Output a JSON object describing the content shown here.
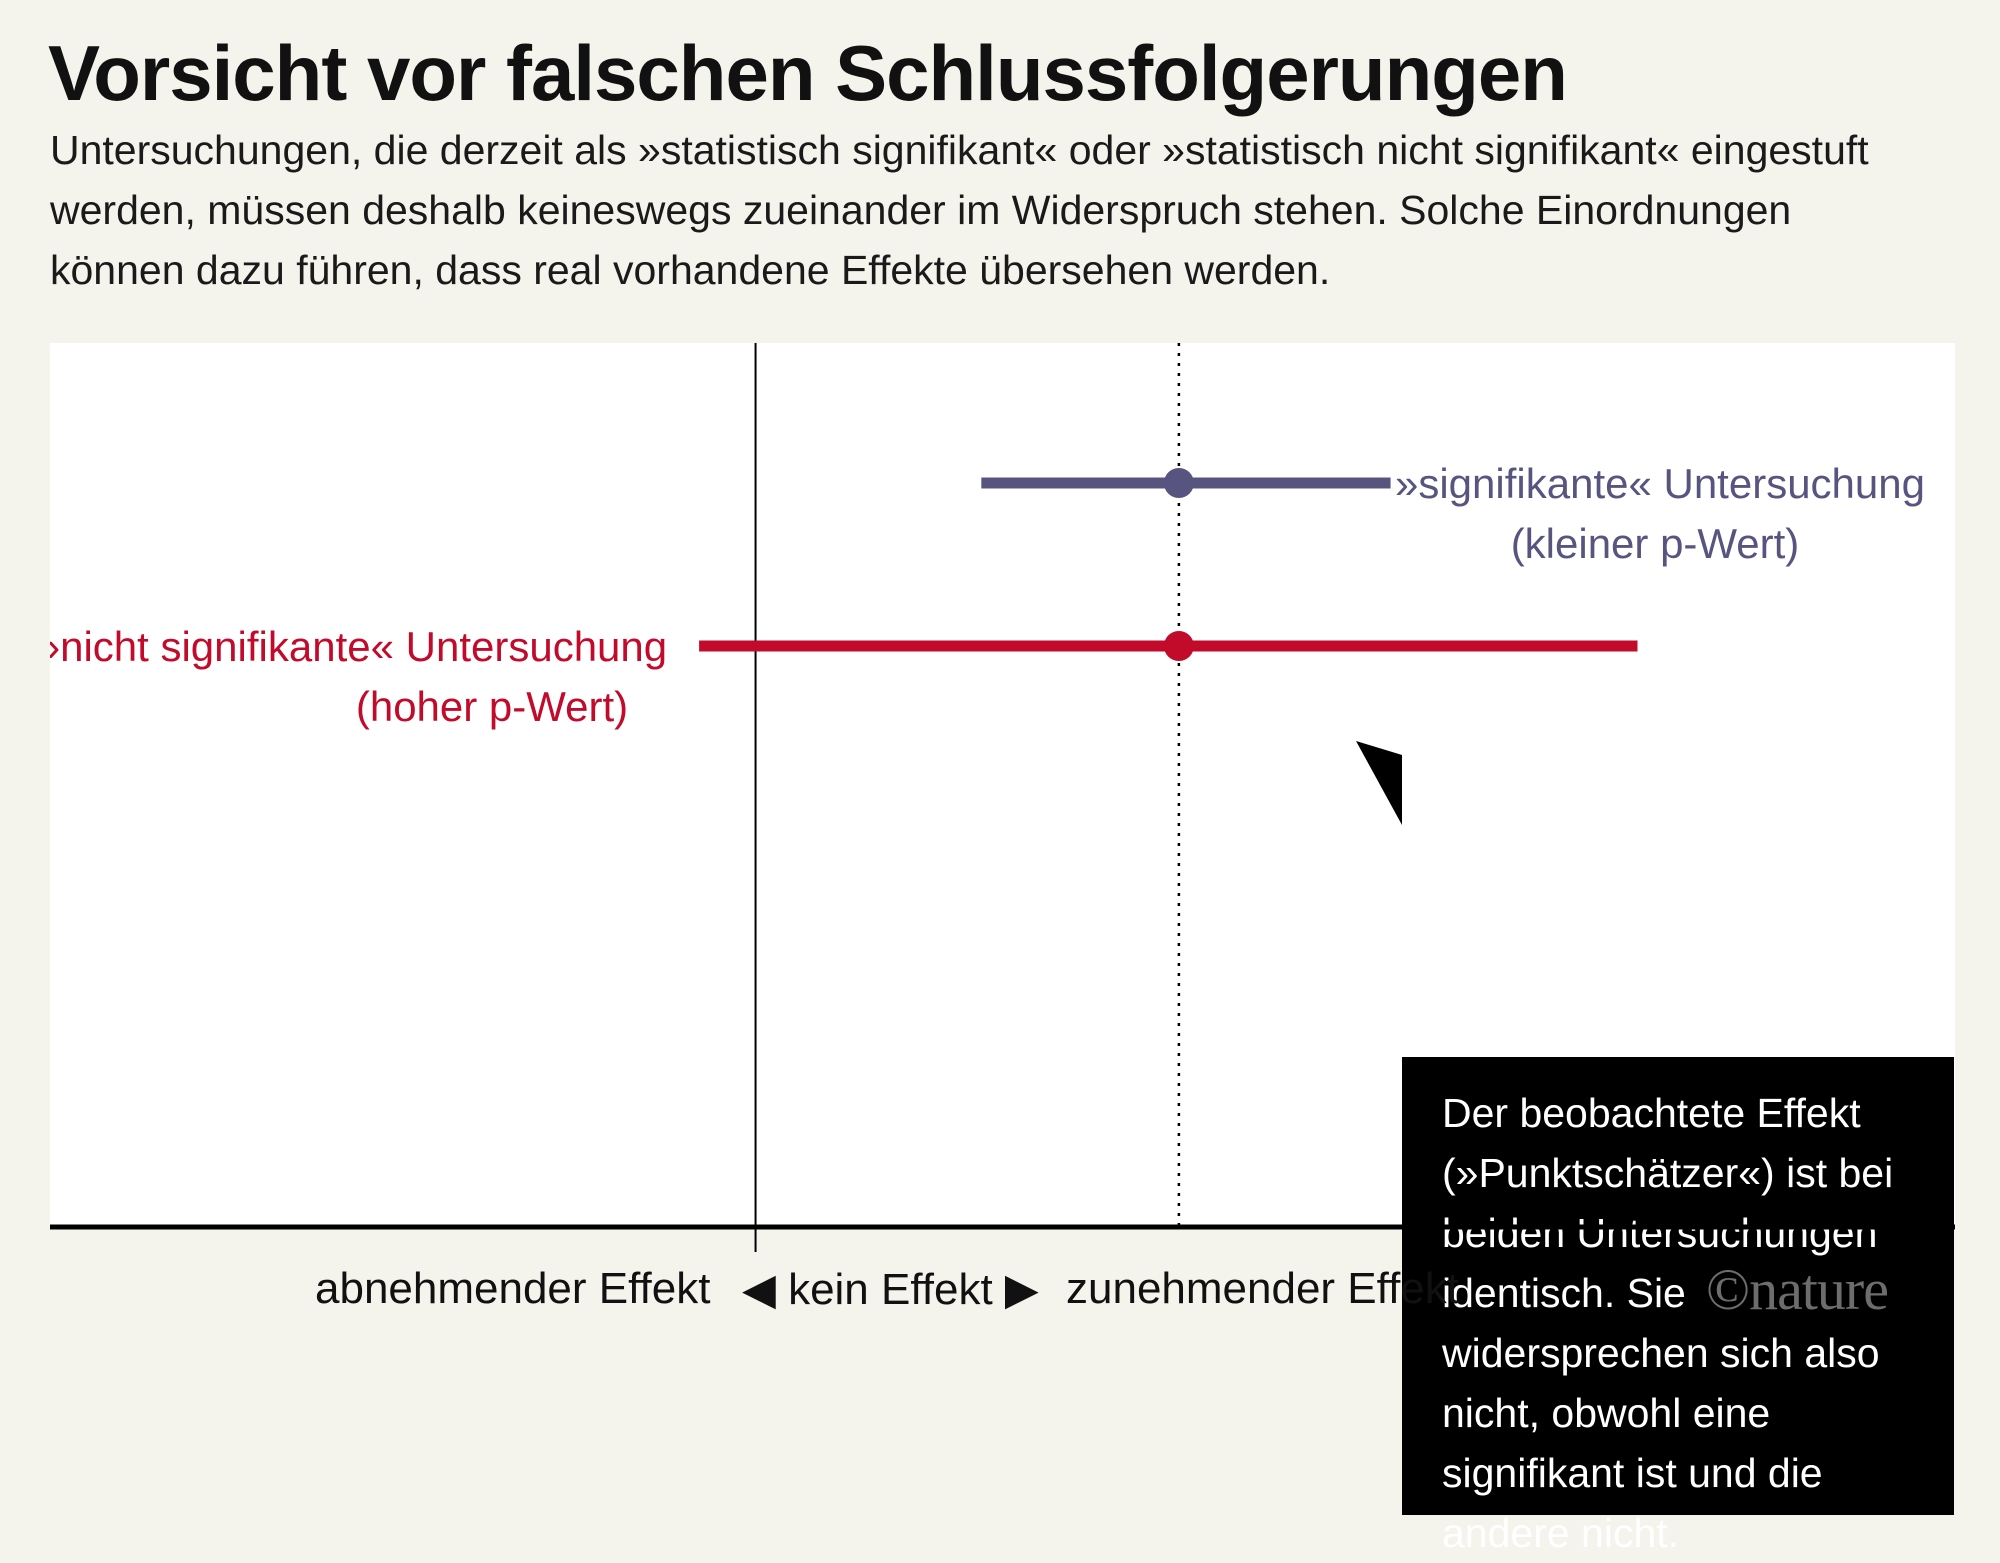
{
  "header": {
    "title": "Vorsicht vor falschen Schlussfolgerungen",
    "subtitle": "Untersuchungen, die derzeit als »statistisch signifikant« oder »statistisch nicht signifikant« eingestuft werden, müssen deshalb keineswegs zueinander im Widerspruch stehen. Solche Einordnungen können dazu führen, dass real vorhandene Effekte übersehen werden."
  },
  "chart_data": {
    "type": "scatter",
    "title": "Vorsicht vor falschen Schlussfolgerungen",
    "x_axis": {
      "range": [
        -1.0,
        1.7
      ],
      "zero_value": 0,
      "labels": {
        "left": "abnehmender Effekt",
        "center": "◀ kein Effekt ▶",
        "right": "zunehmender Effekt"
      }
    },
    "reference_lines": [
      {
        "kind": "no-effect",
        "x": 0,
        "style": "solid"
      },
      {
        "kind": "point-estimate",
        "x": 0.6,
        "style": "dotted"
      }
    ],
    "series": [
      {
        "name": "»signifikante« Untersuchung",
        "label_lines": [
          "»signifikante« Untersuchung",
          "(kleiner p-Wert)"
        ],
        "point": 0.6,
        "ci": [
          0.32,
          0.9
        ],
        "color": "#585480"
      },
      {
        "name": "»nicht signifikante« Untersuchung",
        "label_lines": [
          "»nicht signifikante« Untersuchung",
          "(hoher p-Wert)"
        ],
        "point": 0.6,
        "ci": [
          -0.08,
          1.25
        ],
        "color": "#c20b2b"
      }
    ],
    "annotation": "Der beobachtete Effekt (»Punktschätzer«) ist bei beiden Untersuchungen identisch. Sie widersprechen sich also nicht, obwohl eine signifikant ist und die andere nicht.",
    "grid": false,
    "legend": "none"
  },
  "credit": "©nature"
}
